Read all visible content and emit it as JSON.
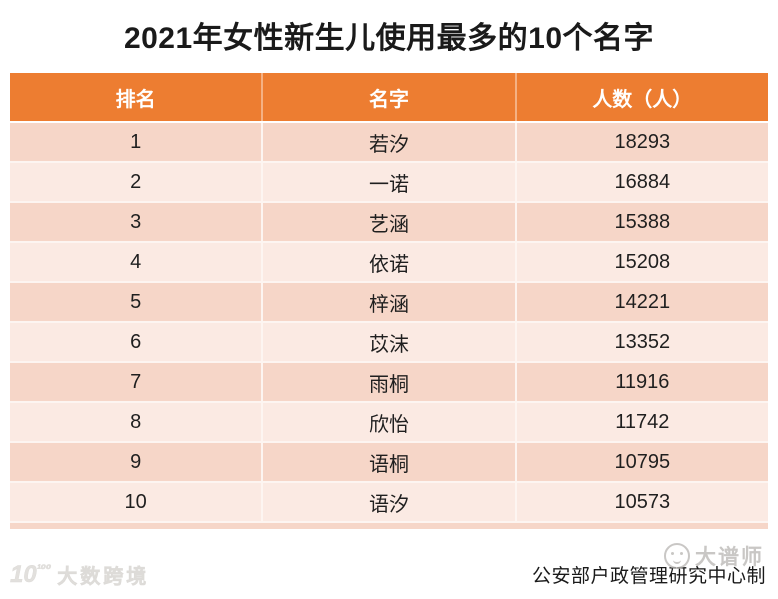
{
  "title": "2021年女性新生儿使用最多的10个名字",
  "table": {
    "columns": [
      "排名",
      "名字",
      "人数（人）"
    ],
    "rows": [
      {
        "rank": "1",
        "name": "若汐",
        "count": "18293"
      },
      {
        "rank": "2",
        "name": "一诺",
        "count": "16884"
      },
      {
        "rank": "3",
        "name": "艺涵",
        "count": "15388"
      },
      {
        "rank": "4",
        "name": "依诺",
        "count": "15208"
      },
      {
        "rank": "5",
        "name": "梓涵",
        "count": "14221"
      },
      {
        "rank": "6",
        "name": "苡沫",
        "count": "13352"
      },
      {
        "rank": "7",
        "name": "雨桐",
        "count": "11916"
      },
      {
        "rank": "8",
        "name": "欣怡",
        "count": "11742"
      },
      {
        "rank": "9",
        "name": "语桐",
        "count": "10795"
      },
      {
        "rank": "10",
        "name": "语汐",
        "count": "10573"
      }
    ]
  },
  "footer": {
    "credit": "公安部户政管理研究中心制"
  },
  "watermarks": {
    "left_logo": "10¹⁰⁰",
    "left_text": "大数跨境",
    "right_text": "大谱师"
  },
  "colors": {
    "header_bg": "#ED7D31",
    "row_odd": "#F6D6C8",
    "row_even": "#FBEAE3",
    "header_text": "#FFFFFF",
    "body_text": "#1F1F1F"
  },
  "chart_data": {
    "type": "table",
    "title": "2021年女性新生儿使用最多的10个名字",
    "columns": [
      "排名",
      "名字",
      "人数（人）"
    ],
    "categories": [
      "若汐",
      "一诺",
      "艺涵",
      "依诺",
      "梓涵",
      "苡沫",
      "雨桐",
      "欣怡",
      "语桐",
      "语汐"
    ],
    "values": [
      18293,
      16884,
      15388,
      15208,
      14221,
      13352,
      11916,
      11742,
      10795,
      10573
    ],
    "source": "公安部户政管理研究中心制"
  }
}
